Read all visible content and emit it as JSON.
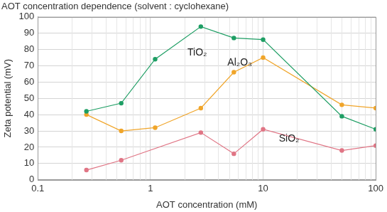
{
  "chart_data": {
    "type": "line",
    "title": "AOT concentration dependence (solvent : cyclohexane)",
    "x_label": "AOT concentration (mM)",
    "y_label": "Zeta potential (mV)",
    "log": "x",
    "grid": true,
    "marker": "circle",
    "xlim": [
      0.1,
      100
    ],
    "xticks": [
      0.1,
      1,
      10,
      100
    ],
    "ylim": [
      0,
      100
    ],
    "yticks": [
      0,
      10,
      20,
      30,
      40,
      50,
      60,
      70,
      80,
      90,
      100
    ],
    "series": [
      {
        "name": "TiO₂",
        "color": "#1e9e64",
        "x": [
          0.27,
          0.55,
          1.1,
          2.8,
          5.5,
          10,
          50,
          100
        ],
        "values": [
          42,
          47,
          74,
          94,
          87,
          86,
          39,
          31
        ]
      },
      {
        "name": "Al₂O₃",
        "color": "#f0a52a",
        "x": [
          0.27,
          0.55,
          1.1,
          2.8,
          5.5,
          10,
          50,
          100
        ],
        "values": [
          40,
          30,
          32,
          44,
          66,
          75,
          46,
          44
        ]
      },
      {
        "name": "SiO₂",
        "color": "#e07585",
        "x": [
          0.27,
          0.55,
          2.8,
          5.5,
          10,
          50,
          100
        ],
        "values": [
          6,
          12,
          29,
          16,
          31,
          18,
          21
        ]
      }
    ],
    "annotations": [
      {
        "text": "TiO₂",
        "x": 2.6,
        "y": 78
      },
      {
        "text": "Al₂O₃",
        "x": 6.2,
        "y": 72
      },
      {
        "text": "SiO₂",
        "x": 17,
        "y": 25
      }
    ]
  }
}
